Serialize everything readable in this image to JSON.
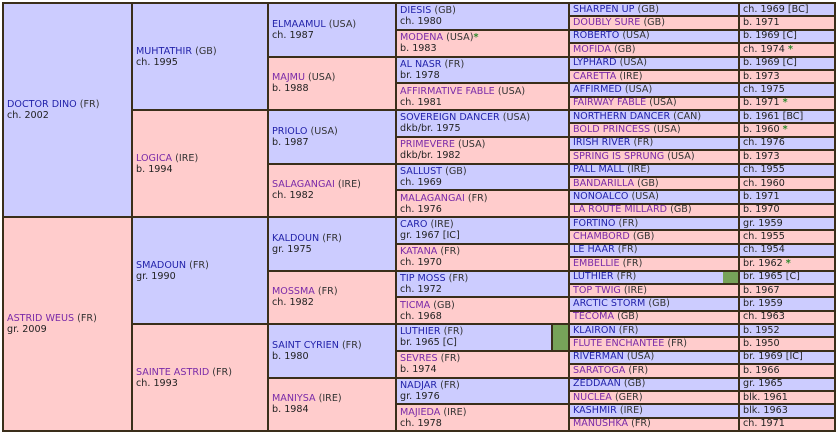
{
  "colors": {
    "male_bg": "#ccccff",
    "female_bg": "#ffcccc",
    "border": "#3a2e1a",
    "inbreeding_marker": "#77a359",
    "sire_link": "#2222aa",
    "dam_link": "#7a2aa8",
    "star": "#2c8a2c"
  },
  "gen1": [
    {
      "name": "DOCTOR DINO",
      "country": "(FR)",
      "info": "ch. 2002",
      "sex": "m"
    },
    {
      "name": "ASTRID WEUS",
      "country": "(FR)",
      "info": "gr. 2009",
      "sex": "f"
    }
  ],
  "gen2": [
    {
      "name": "MUHTATHIR",
      "country": "(GB)",
      "info": "ch. 1995",
      "sex": "m"
    },
    {
      "name": "LOGICA",
      "country": "(IRE)",
      "info": "b. 1994",
      "sex": "f"
    },
    {
      "name": "SMADOUN",
      "country": "(FR)",
      "info": "gr. 1990",
      "sex": "m"
    },
    {
      "name": "SAINTE ASTRID",
      "country": "(FR)",
      "info": "ch. 1993",
      "sex": "f"
    }
  ],
  "gen3": [
    {
      "name": "ELMAAMUL",
      "country": "(USA)",
      "info": "ch. 1987",
      "sex": "m"
    },
    {
      "name": "MAJMU",
      "country": "(USA)",
      "info": "b. 1988",
      "sex": "f"
    },
    {
      "name": "PRIOLO",
      "country": "(USA)",
      "info": "b. 1987",
      "sex": "m"
    },
    {
      "name": "SALAGANGAI",
      "country": "(IRE)",
      "info": "ch. 1982",
      "sex": "f"
    },
    {
      "name": "KALDOUN",
      "country": "(FR)",
      "info": "gr. 1975",
      "sex": "m"
    },
    {
      "name": "MOSSMA",
      "country": "(FR)",
      "info": "ch. 1982",
      "sex": "f"
    },
    {
      "name": "SAINT CYRIEN",
      "country": "(FR)",
      "info": "b. 1980",
      "sex": "m"
    },
    {
      "name": "MANIYSA",
      "country": "(IRE)",
      "info": "b. 1984",
      "sex": "f"
    }
  ],
  "gen4": [
    {
      "name": "DIESIS",
      "country": "(GB)",
      "info": "ch. 1980",
      "sex": "m",
      "star": ""
    },
    {
      "name": "MODENA",
      "country": "(USA)",
      "info": "b. 1983",
      "sex": "f",
      "star": "*"
    },
    {
      "name": "AL NASR",
      "country": "(FR)",
      "info": "br. 1978",
      "sex": "m",
      "star": ""
    },
    {
      "name": "AFFIRMATIVE FABLE",
      "country": "(USA)",
      "info": "ch. 1981",
      "sex": "f",
      "star": ""
    },
    {
      "name": "SOVEREIGN DANCER",
      "country": "(USA)",
      "info": "dkb/br. 1975",
      "sex": "m",
      "star": ""
    },
    {
      "name": "PRIMEVERE",
      "country": "(USA)",
      "info": "dkb/br. 1982",
      "sex": "f",
      "star": ""
    },
    {
      "name": "SALLUST",
      "country": "(GB)",
      "info": "ch. 1969",
      "sex": "m",
      "star": ""
    },
    {
      "name": "MALAGANGAI",
      "country": "(FR)",
      "info": "ch. 1976",
      "sex": "f",
      "star": ""
    },
    {
      "name": "CARO",
      "country": "(IRE)",
      "info": "gr. 1967 [IC]",
      "sex": "m",
      "star": ""
    },
    {
      "name": "KATANA",
      "country": "(FR)",
      "info": "ch. 1970",
      "sex": "f",
      "star": ""
    },
    {
      "name": "TIP MOSS",
      "country": "(FR)",
      "info": "ch. 1972",
      "sex": "m",
      "star": ""
    },
    {
      "name": "TICMA",
      "country": "(GB)",
      "info": "ch. 1968",
      "sex": "f",
      "star": ""
    },
    {
      "name": "LUTHIER",
      "country": "(FR)",
      "info": "br. 1965 [C]",
      "sex": "m",
      "star": "",
      "inbred": true
    },
    {
      "name": "SEVRES",
      "country": "(FR)",
      "info": "b. 1974",
      "sex": "f",
      "star": ""
    },
    {
      "name": "NADJAR",
      "country": "(FR)",
      "info": "gr. 1976",
      "sex": "m",
      "star": ""
    },
    {
      "name": "MAJIEDA",
      "country": "(IRE)",
      "info": "ch. 1978",
      "sex": "f",
      "star": ""
    }
  ],
  "gen5": [
    {
      "name": "SHARPEN UP",
      "country": "(GB)",
      "info": "ch. 1969 [BC]",
      "sex": "m",
      "star": ""
    },
    {
      "name": "DOUBLY SURE",
      "country": "(GB)",
      "info": "b. 1971",
      "sex": "f",
      "star": ""
    },
    {
      "name": "ROBERTO",
      "country": "(USA)",
      "info": "b. 1969 [C]",
      "sex": "m",
      "star": ""
    },
    {
      "name": "MOFIDA",
      "country": "(GB)",
      "info": "ch. 1974",
      "sex": "f",
      "star": "*"
    },
    {
      "name": "LYPHARD",
      "country": "(USA)",
      "info": "b. 1969 [C]",
      "sex": "m",
      "star": ""
    },
    {
      "name": "CARETTA",
      "country": "(IRE)",
      "info": "b. 1973",
      "sex": "f",
      "star": ""
    },
    {
      "name": "AFFIRMED",
      "country": "(USA)",
      "info": "ch. 1975",
      "sex": "m",
      "star": ""
    },
    {
      "name": "FAIRWAY FABLE",
      "country": "(USA)",
      "info": "b. 1971",
      "sex": "f",
      "star": "*"
    },
    {
      "name": "NORTHERN DANCER",
      "country": "(CAN)",
      "info": "b. 1961 [BC]",
      "sex": "m",
      "star": ""
    },
    {
      "name": "BOLD PRINCESS",
      "country": "(USA)",
      "info": "b. 1960",
      "sex": "f",
      "star": "*"
    },
    {
      "name": "IRISH RIVER",
      "country": "(FR)",
      "info": "ch. 1976",
      "sex": "m",
      "star": ""
    },
    {
      "name": "SPRING IS SPRUNG",
      "country": "(USA)",
      "info": "b. 1973",
      "sex": "f",
      "star": ""
    },
    {
      "name": "PALL MALL",
      "country": "(IRE)",
      "info": "ch. 1955",
      "sex": "m",
      "star": ""
    },
    {
      "name": "BANDARILLA",
      "country": "(GB)",
      "info": "ch. 1960",
      "sex": "f",
      "star": ""
    },
    {
      "name": "NONOALCO",
      "country": "(USA)",
      "info": "b. 1971",
      "sex": "m",
      "star": ""
    },
    {
      "name": "LA ROUTE MILLARD",
      "country": "(GB)",
      "info": "b. 1970",
      "sex": "f",
      "star": ""
    },
    {
      "name": "FORTINO",
      "country": "(FR)",
      "info": "gr. 1959",
      "sex": "m",
      "star": ""
    },
    {
      "name": "CHAMBORD",
      "country": "(GB)",
      "info": "ch. 1955",
      "sex": "f",
      "star": ""
    },
    {
      "name": "LE HAAR",
      "country": "(FR)",
      "info": "ch. 1954",
      "sex": "m",
      "star": ""
    },
    {
      "name": "EMBELLIE",
      "country": "(FR)",
      "info": "br. 1962",
      "sex": "f",
      "star": "*"
    },
    {
      "name": "LUTHIER",
      "country": "(FR)",
      "info": "br. 1965 [C]",
      "sex": "m",
      "star": "",
      "inbred": true
    },
    {
      "name": "TOP TWIG",
      "country": "(IRE)",
      "info": "b. 1967",
      "sex": "f",
      "star": ""
    },
    {
      "name": "ARCTIC STORM",
      "country": "(GB)",
      "info": "br. 1959",
      "sex": "m",
      "star": ""
    },
    {
      "name": "TECOMA",
      "country": "(GB)",
      "info": "ch. 1963",
      "sex": "f",
      "star": ""
    },
    {
      "name": "KLAIRON",
      "country": "(FR)",
      "info": "b. 1952",
      "sex": "m",
      "star": ""
    },
    {
      "name": "FLUTE ENCHANTEE",
      "country": "(FR)",
      "info": "b. 1950",
      "sex": "f",
      "star": ""
    },
    {
      "name": "RIVERMAN",
      "country": "(USA)",
      "info": "br. 1969 [IC]",
      "sex": "m",
      "star": ""
    },
    {
      "name": "SARATOGA",
      "country": "(FR)",
      "info": "b. 1966",
      "sex": "f",
      "star": ""
    },
    {
      "name": "ZEDDAAN",
      "country": "(GB)",
      "info": "gr. 1965",
      "sex": "m",
      "star": ""
    },
    {
      "name": "NUCLEA",
      "country": "(GER)",
      "info": "blk. 1961",
      "sex": "f",
      "star": ""
    },
    {
      "name": "KASHMIR",
      "country": "(IRE)",
      "info": "blk. 1963",
      "sex": "m",
      "star": ""
    },
    {
      "name": "MANUSHKA",
      "country": "(FR)",
      "info": "ch. 1971",
      "sex": "f",
      "star": ""
    }
  ]
}
